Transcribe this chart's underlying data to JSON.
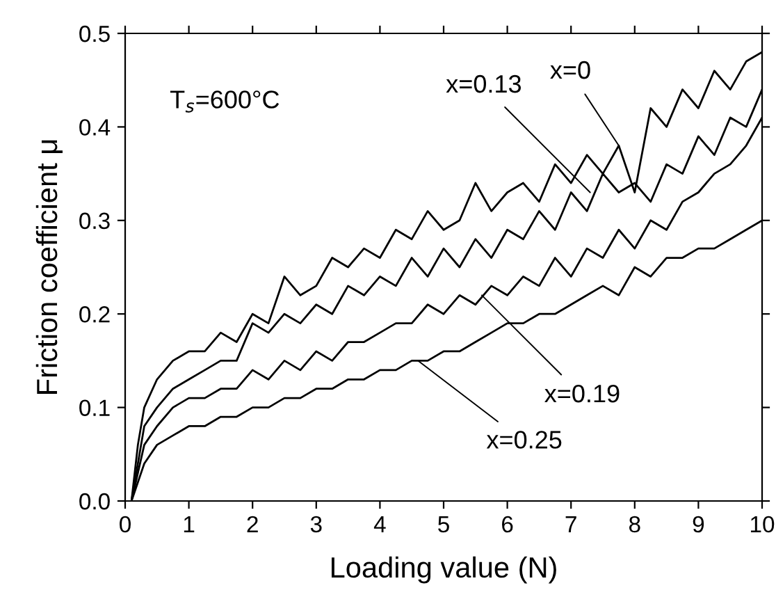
{
  "chart_data": {
    "type": "line",
    "xlabel": "Loading value (N)",
    "ylabel": "Friction coefficient μ",
    "annotations": [
      "T$_{s}$=600°C",
      {
        "text": "x=0",
        "x": 7.75,
        "y": 0.38
      },
      {
        "text": "x=0.13",
        "x": 7.3,
        "y": 0.33
      },
      {
        "text": "x=0.19",
        "x": 5.6,
        "y": 0.22
      },
      {
        "text": "x=0.25",
        "x": 4.6,
        "y": 0.15
      }
    ],
    "x": [
      0.1,
      0.2,
      0.3,
      0.5,
      0.75,
      1,
      1.25,
      1.5,
      1.75,
      2,
      2.25,
      2.5,
      2.75,
      3,
      3.25,
      3.5,
      3.75,
      4,
      4.25,
      4.5,
      4.75,
      5,
      5.25,
      5.5,
      5.75,
      6,
      6.25,
      6.5,
      6.75,
      7,
      7.25,
      7.5,
      7.75,
      8,
      8.25,
      8.5,
      8.75,
      9,
      9.25,
      9.5,
      9.75,
      10
    ],
    "series": [
      {
        "color": "#000000",
        "values": [
          0,
          0.06,
          0.1,
          0.13,
          0.15,
          0.16,
          0.16,
          0.18,
          0.17,
          0.2,
          0.19,
          0.24,
          0.22,
          0.23,
          0.26,
          0.25,
          0.27,
          0.26,
          0.29,
          0.28,
          0.31,
          0.29,
          0.3,
          0.34,
          0.31,
          0.33,
          0.34,
          0.32,
          0.36,
          0.34,
          0.37,
          0.35,
          0.38,
          0.33,
          0.42,
          0.4,
          0.44,
          0.42,
          0.46,
          0.44,
          0.47,
          0.48
        ]
      },
      {
        "color": "#000000",
        "values": [
          0,
          0.04,
          0.08,
          0.1,
          0.12,
          0.13,
          0.14,
          0.15,
          0.15,
          0.19,
          0.18,
          0.2,
          0.19,
          0.21,
          0.2,
          0.23,
          0.22,
          0.24,
          0.23,
          0.26,
          0.24,
          0.27,
          0.25,
          0.28,
          0.26,
          0.29,
          0.28,
          0.31,
          0.29,
          0.33,
          0.31,
          0.35,
          0.33,
          0.34,
          0.32,
          0.36,
          0.35,
          0.39,
          0.37,
          0.41,
          0.4,
          0.44
        ]
      },
      {
        "color": "#000000",
        "values": [
          0,
          0.03,
          0.06,
          0.08,
          0.1,
          0.11,
          0.11,
          0.12,
          0.12,
          0.14,
          0.13,
          0.15,
          0.14,
          0.16,
          0.15,
          0.17,
          0.17,
          0.18,
          0.19,
          0.19,
          0.21,
          0.2,
          0.22,
          0.21,
          0.23,
          0.22,
          0.24,
          0.23,
          0.26,
          0.24,
          0.27,
          0.26,
          0.29,
          0.27,
          0.3,
          0.29,
          0.32,
          0.33,
          0.35,
          0.36,
          0.38,
          0.41
        ]
      },
      {
        "color": "#000000",
        "values": [
          0,
          0.02,
          0.04,
          0.06,
          0.07,
          0.08,
          0.08,
          0.09,
          0.09,
          0.1,
          0.1,
          0.11,
          0.11,
          0.12,
          0.12,
          0.13,
          0.13,
          0.14,
          0.14,
          0.15,
          0.15,
          0.16,
          0.16,
          0.17,
          0.18,
          0.19,
          0.19,
          0.2,
          0.2,
          0.21,
          0.22,
          0.23,
          0.22,
          0.25,
          0.24,
          0.26,
          0.26,
          0.27,
          0.27,
          0.28,
          0.29,
          0.3
        ]
      }
    ],
    "xlim": [
      0,
      10
    ],
    "xticks": [
      0,
      1,
      2,
      3,
      4,
      5,
      6,
      7,
      8,
      9,
      10
    ],
    "ylim": [
      0,
      0.5
    ],
    "yticks": [
      {
        "value": 0,
        "label": "0.0"
      },
      {
        "value": 0.1,
        "label": "0.1"
      },
      {
        "value": 0.2,
        "label": "0.2"
      },
      {
        "value": 0.3,
        "label": "0.3"
      },
      {
        "value": 0.4,
        "label": "0.4"
      },
      {
        "value": 0.5,
        "label": "0.5"
      }
    ],
    "grid": false,
    "legend": false,
    "marker": "none",
    "line_style": "solid"
  }
}
